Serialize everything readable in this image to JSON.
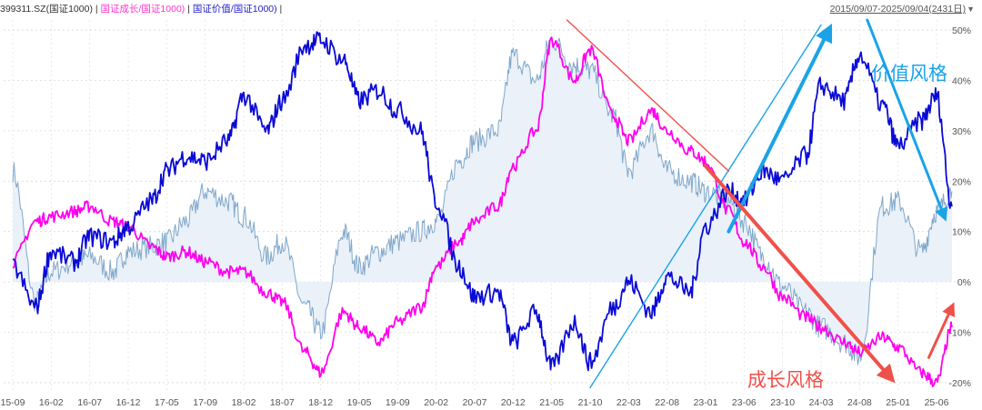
{
  "header": {
    "code": "399311.SZ(国证1000)",
    "sep1": " | ",
    "series_growth_label": "国证成长/国证1000)",
    "sep2": " | ",
    "series_value_label": "国证价值/国证1000)",
    "sep3": " |",
    "date_range": "2015/09/07-2025/09/04(2431日)"
  },
  "chart_data": {
    "type": "line",
    "x_ticks": [
      "15-09",
      "16-02",
      "16-07",
      "16-12",
      "17-05",
      "17-09",
      "18-02",
      "18-07",
      "18-12",
      "19-05",
      "19-09",
      "20-02",
      "20-07",
      "20-12",
      "21-05",
      "21-10",
      "22-03",
      "22-08",
      "23-01",
      "23-06",
      "23-10",
      "24-03",
      "24-08",
      "25-01",
      "25-06"
    ],
    "y_ticks": [
      "50%",
      "40%",
      "30%",
      "20%",
      "10%",
      "0%",
      "-10%",
      "-20%"
    ],
    "ylim": [
      -22,
      52
    ],
    "grid": true,
    "annotations": {
      "value_style": "价值风格",
      "growth_style": "成长风格"
    },
    "colors": {
      "index": "#7fa6c9",
      "index_fill": "#e8f0f8",
      "growth": "#ff00ee",
      "value": "#0a0ad6",
      "arrow_blue": "#1aa3e8",
      "arrow_red": "#f0504a"
    },
    "series": [
      {
        "key": "value",
        "x": [
          "15-09",
          "15-12",
          "16-02",
          "16-05",
          "16-07",
          "16-10",
          "16-12",
          "17-03",
          "17-05",
          "17-07",
          "17-09",
          "17-12",
          "18-02",
          "18-05",
          "18-07",
          "18-10",
          "18-12",
          "19-03",
          "19-05",
          "19-07",
          "19-09",
          "19-12",
          "20-02",
          "20-05",
          "20-07",
          "20-10",
          "20-12",
          "21-03",
          "21-05",
          "21-08",
          "21-10",
          "22-01",
          "22-03",
          "22-06",
          "22-08",
          "22-11",
          "23-01",
          "23-04",
          "23-06",
          "23-08",
          "23-10",
          "24-01",
          "24-03",
          "24-06",
          "24-08",
          "24-11",
          "25-01",
          "25-04",
          "25-06",
          "25-08"
        ],
        "values": [
          3,
          -5,
          6,
          4,
          9,
          8,
          11,
          16,
          22,
          25,
          24,
          28,
          37,
          30,
          36,
          47,
          48,
          44,
          36,
          38,
          34,
          30,
          16,
          3,
          -3,
          -2,
          -12,
          -6,
          -17,
          -8,
          -16,
          -5,
          0,
          -6,
          1,
          -2,
          11,
          18,
          16,
          22,
          20,
          25,
          39,
          36,
          45,
          35,
          27,
          32,
          37,
          15
        ]
      },
      {
        "key": "growth",
        "x": [
          "15-09",
          "15-12",
          "16-02",
          "16-05",
          "16-07",
          "16-10",
          "16-12",
          "17-03",
          "17-05",
          "17-07",
          "17-09",
          "17-12",
          "18-02",
          "18-05",
          "18-07",
          "18-10",
          "18-12",
          "19-03",
          "19-05",
          "19-07",
          "19-09",
          "19-12",
          "20-02",
          "20-05",
          "20-07",
          "20-10",
          "20-12",
          "21-03",
          "21-05",
          "21-08",
          "21-10",
          "22-01",
          "22-03",
          "22-06",
          "22-08",
          "22-11",
          "23-01",
          "23-04",
          "23-06",
          "23-08",
          "23-10",
          "24-01",
          "24-03",
          "24-06",
          "24-08",
          "24-11",
          "25-01",
          "25-04",
          "25-06",
          "25-08"
        ],
        "values": [
          4,
          12,
          13,
          14,
          15,
          12,
          11,
          7,
          5,
          6,
          4,
          2,
          2,
          -2,
          -4,
          -14,
          -18,
          -6,
          -9,
          -12,
          -8,
          -5,
          3,
          8,
          12,
          15,
          23,
          30,
          48,
          40,
          46,
          33,
          28,
          34,
          30,
          26,
          24,
          14,
          8,
          3,
          -3,
          -7,
          -9,
          -12,
          -14,
          -11,
          -13,
          -18,
          -20,
          -9
        ]
      },
      {
        "key": "index",
        "x": [
          "15-09",
          "15-12",
          "16-02",
          "16-05",
          "16-07",
          "16-10",
          "16-12",
          "17-03",
          "17-05",
          "17-07",
          "17-09",
          "17-12",
          "18-02",
          "18-05",
          "18-07",
          "18-10",
          "18-12",
          "19-03",
          "19-05",
          "19-07",
          "19-09",
          "19-12",
          "20-02",
          "20-05",
          "20-07",
          "20-10",
          "20-12",
          "21-03",
          "21-05",
          "21-08",
          "21-10",
          "22-01",
          "22-03",
          "22-06",
          "22-08",
          "22-11",
          "23-01",
          "23-04",
          "23-06",
          "23-08",
          "23-10",
          "24-01",
          "24-03",
          "24-06",
          "24-08",
          "24-11",
          "25-01",
          "25-04",
          "25-06",
          "25-08"
        ],
        "values": [
          22,
          -4,
          2,
          4,
          5,
          2,
          6,
          7,
          8,
          12,
          18,
          16,
          13,
          5,
          8,
          -5,
          -10,
          10,
          3,
          6,
          8,
          10,
          12,
          24,
          28,
          30,
          45,
          40,
          48,
          43,
          42,
          33,
          22,
          30,
          22,
          20,
          18,
          16,
          12,
          5,
          -1,
          -6,
          -9,
          -12,
          -15,
          15,
          16,
          6,
          14,
          18
        ]
      }
    ]
  }
}
